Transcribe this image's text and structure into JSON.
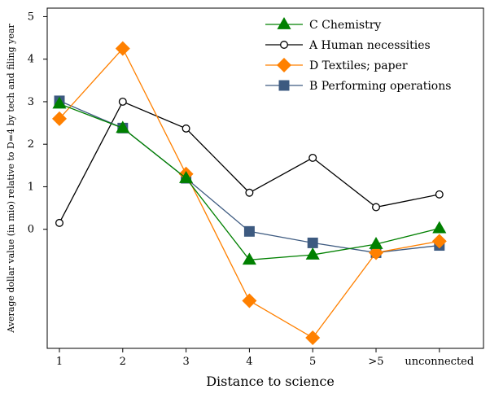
{
  "chart_data": {
    "type": "line",
    "title": "",
    "xlabel": "Distance to science",
    "ylabel": "Average dollar value (in mio) relative to D=4 by tech and filing year",
    "categories": [
      "1",
      "2",
      "3",
      "4",
      "5",
      ">5",
      "unconnected"
    ],
    "yticks": [
      0,
      1,
      2,
      3,
      4,
      5
    ],
    "ytick_labels": [
      "0",
      "1",
      "2",
      "3",
      "4",
      "5"
    ],
    "ylim": [
      -2.8,
      5.2
    ],
    "grid": false,
    "legend_position": "top-right",
    "series": [
      {
        "name": "C Chemistry",
        "color": "#008000",
        "marker": "triangle",
        "values": [
          2.95,
          2.38,
          1.2,
          -0.72,
          -0.6,
          -0.35,
          0.02
        ]
      },
      {
        "name": "A Human necessities",
        "color": "#000000",
        "marker": "circle-open",
        "values": [
          0.15,
          3.0,
          2.37,
          0.86,
          1.68,
          0.52,
          0.82
        ]
      },
      {
        "name": "D Textiles; paper",
        "color": "#ff8000",
        "marker": "diamond",
        "values": [
          2.6,
          4.25,
          1.3,
          -1.68,
          -2.55,
          -0.55,
          -0.28
        ]
      },
      {
        "name": "B Performing operations",
        "color": "#3d5a80",
        "marker": "square",
        "values": [
          3.02,
          2.38,
          1.2,
          -0.05,
          -0.32,
          -0.55,
          -0.38
        ]
      }
    ]
  }
}
